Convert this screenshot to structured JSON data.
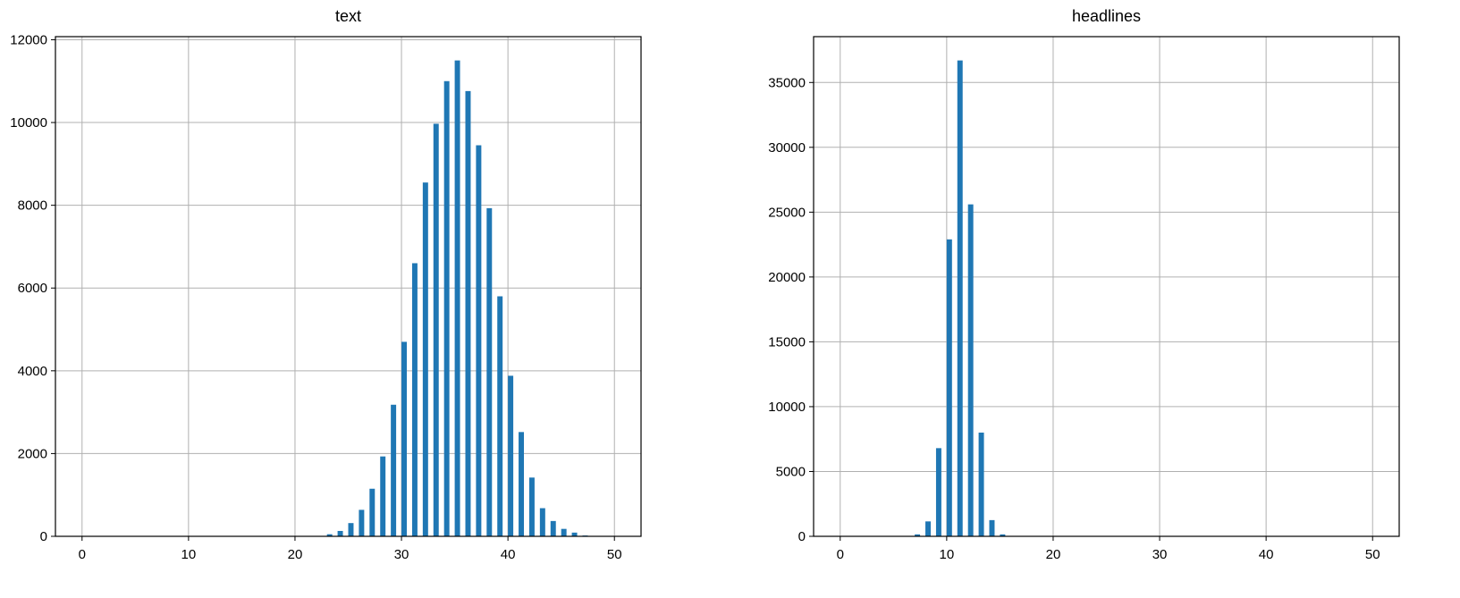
{
  "chart_data": [
    {
      "type": "bar",
      "title": "text",
      "xlabel": "",
      "ylabel": "",
      "xlim": [
        -2.5,
        52.5
      ],
      "ylim": [
        0,
        12075
      ],
      "xticks": [
        0,
        10,
        20,
        30,
        40,
        50
      ],
      "yticks": [
        0,
        2000,
        4000,
        6000,
        8000,
        10000,
        12000
      ],
      "grid": true,
      "bar_width": 0.5,
      "color": "#1f77b4",
      "x": [
        23,
        24,
        25,
        26,
        27,
        28,
        29,
        30,
        31,
        32,
        33,
        34,
        35,
        36,
        37,
        38,
        39,
        40,
        41,
        42,
        43,
        44,
        45,
        46,
        47
      ],
      "values": [
        50,
        130,
        320,
        640,
        1150,
        1930,
        3180,
        4700,
        6600,
        8550,
        9970,
        11000,
        11500,
        10760,
        9450,
        7930,
        5800,
        3880,
        2520,
        1420,
        680,
        370,
        180,
        90,
        20
      ]
    },
    {
      "type": "bar",
      "title": "headlines",
      "xlabel": "",
      "ylabel": "",
      "xlim": [
        -2.5,
        52.5
      ],
      "ylim": [
        0,
        38535
      ],
      "xticks": [
        0,
        10,
        20,
        30,
        40,
        50
      ],
      "yticks": [
        0,
        5000,
        10000,
        15000,
        20000,
        25000,
        30000,
        35000
      ],
      "grid": true,
      "bar_width": 0.5,
      "color": "#1f77b4",
      "x": [
        7,
        8,
        9,
        10,
        11,
        12,
        13,
        14,
        15
      ],
      "values": [
        150,
        1150,
        6800,
        22900,
        36700,
        25600,
        8000,
        1250,
        150
      ]
    }
  ]
}
